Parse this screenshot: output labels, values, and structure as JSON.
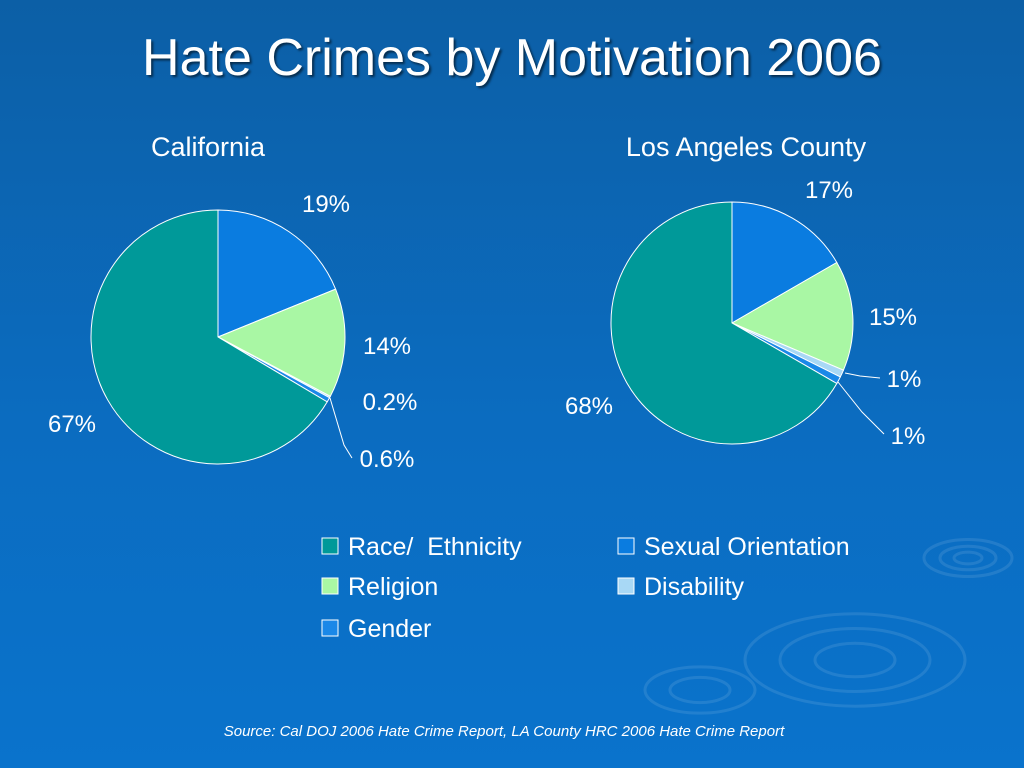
{
  "title": "Hate Crimes by Motivation 2006",
  "source": "Source: Cal DOJ 2006 Hate Crime Report, LA County HRC 2006 Hate Crime Report",
  "colors": {
    "Race/  Ethnicity": "#009999",
    "Sexual Orientation": "#0a7ce0",
    "Religion": "#a9f7a4",
    "Disability": "#a8d8f5",
    "Gender": "#1a88e8"
  },
  "chart_data": [
    {
      "type": "pie",
      "title": "California",
      "slices": [
        {
          "label": "Sexual Orientation",
          "value": 19,
          "text": "19%"
        },
        {
          "label": "Religion",
          "value": 14,
          "text": "14%"
        },
        {
          "label": "Disability",
          "value": 0.2,
          "text": "0.2%"
        },
        {
          "label": "Gender",
          "value": 0.6,
          "text": "0.6%"
        },
        {
          "label": "Race/  Ethnicity",
          "value": 67,
          "text": "67%"
        }
      ]
    },
    {
      "type": "pie",
      "title": "Los Angeles County",
      "slices": [
        {
          "label": "Sexual Orientation",
          "value": 17,
          "text": "17%"
        },
        {
          "label": "Religion",
          "value": 15,
          "text": "15%"
        },
        {
          "label": "Disability",
          "value": 1,
          "text": "1%"
        },
        {
          "label": "Gender",
          "value": 1,
          "text": "1%"
        },
        {
          "label": "Race/  Ethnicity",
          "value": 68,
          "text": "68%"
        }
      ]
    }
  ],
  "legend": {
    "entries": [
      "Race/  Ethnicity",
      "Sexual Orientation",
      "Religion",
      "Disability",
      "Gender"
    ]
  }
}
